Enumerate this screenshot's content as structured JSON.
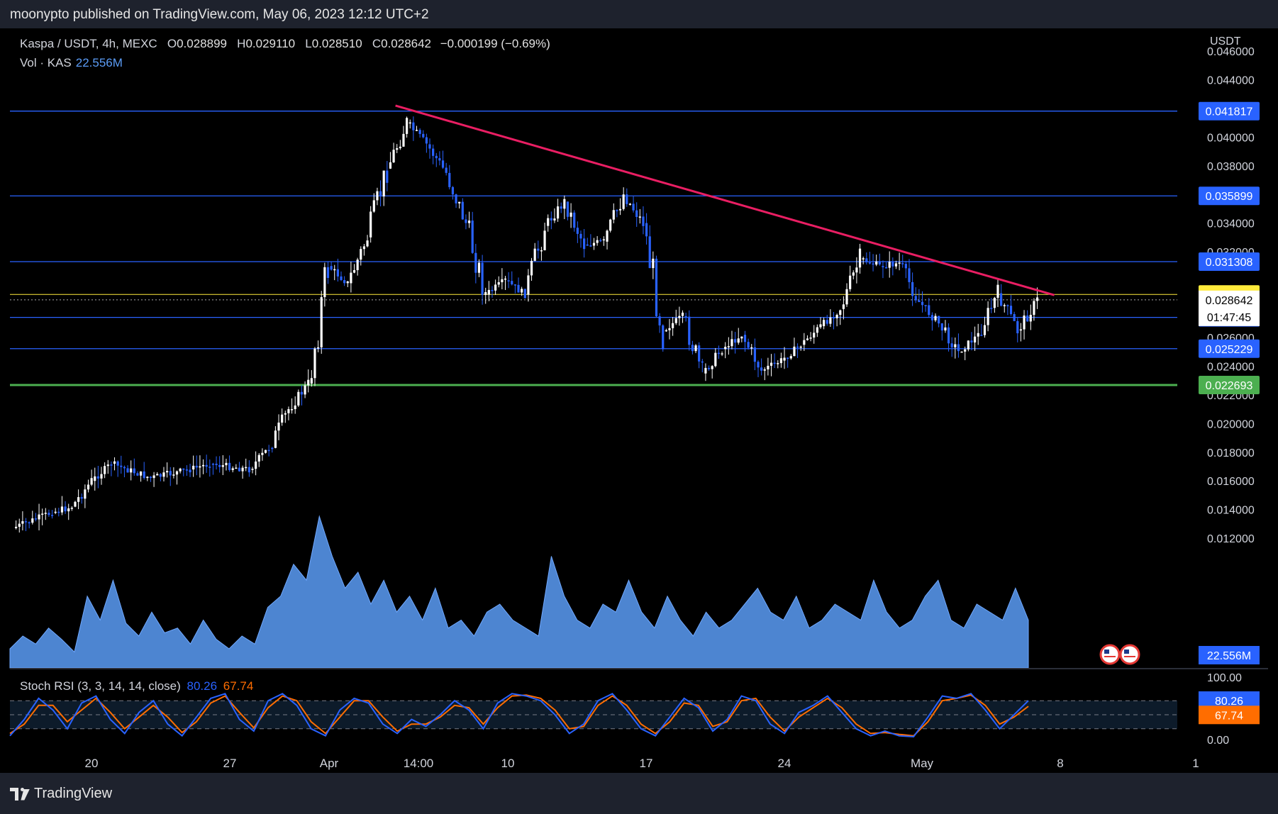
{
  "header": {
    "publish_line": "moonypto published on TradingView.com, May 06, 2023 12:12 UTC+2"
  },
  "legend": {
    "symbol": "Kaspa / USDT, 4h, MEXC",
    "open_label": "O",
    "open": "0.028899",
    "high_label": "H",
    "high": "0.029110",
    "low_label": "L",
    "low": "0.028510",
    "close_label": "C",
    "close": "0.028642",
    "change": "−0.000199 (−0.69%)",
    "vol_label": "Vol · KAS",
    "vol_value": "22.556M"
  },
  "rsi_legend": {
    "label": "Stoch RSI (3, 3, 14, 14, close)",
    "k": "80.26",
    "d": "67.74"
  },
  "footer": {
    "brand": "TradingView"
  },
  "colors": {
    "up": "#ffffff",
    "down": "#2962ff",
    "level": "#2962ff",
    "support": "#4caf50",
    "trendline": "#e91e63",
    "current_price": "#ffeb3b",
    "volume": "#5b9cf6",
    "k_line": "#2962ff",
    "d_line": "#ff6d00"
  },
  "chart_data": {
    "type": "candlestick",
    "timeframe": "4h",
    "price_axis": {
      "currency": "USDT",
      "ticks": [
        "0.046000",
        "0.044000",
        "0.040000",
        "0.038000",
        "0.034000",
        "0.032000",
        "0.026000",
        "0.024000",
        "0.022000",
        "0.020000",
        "0.018000",
        "0.016000",
        "0.014000",
        "0.012000"
      ],
      "range": [
        0.0108,
        0.0465
      ]
    },
    "time_axis": {
      "labels": [
        "20",
        "27",
        "Apr",
        "14:00",
        "10",
        "17",
        "24",
        "May",
        "8",
        "1"
      ]
    },
    "horizontal_levels": [
      {
        "price": 0.041817,
        "label": "0.041817",
        "kind": "resistance"
      },
      {
        "price": 0.035899,
        "label": "0.035899",
        "kind": "resistance"
      },
      {
        "price": 0.031308,
        "label": "0.031308",
        "kind": "resistance"
      },
      {
        "price": 0.027413,
        "label": "0.027413",
        "kind": "support"
      },
      {
        "price": 0.025229,
        "label": "0.025229",
        "kind": "support"
      },
      {
        "price": 0.022693,
        "label": "0.022693",
        "kind": "support"
      },
      {
        "price": 0.029015,
        "label": "0.029015",
        "kind": "current"
      }
    ],
    "current_price": {
      "price": 0.028642,
      "label": "0.028642",
      "countdown": "01:47:45"
    },
    "trendline": {
      "from": {
        "date": "Apr 4",
        "price": 0.0421
      },
      "to": {
        "date": "May 6",
        "price": 0.0289
      }
    },
    "close_path": [
      {
        "date": "Mar 15",
        "price": 0.0127
      },
      {
        "date": "Mar 17",
        "price": 0.0138
      },
      {
        "date": "Mar 18",
        "price": 0.0142
      },
      {
        "date": "Mar 19",
        "price": 0.016
      },
      {
        "date": "Mar 20",
        "price": 0.0172
      },
      {
        "date": "Mar 22",
        "price": 0.0162
      },
      {
        "date": "Mar 24",
        "price": 0.0168
      },
      {
        "date": "Mar 25",
        "price": 0.0172
      },
      {
        "date": "Mar 27",
        "price": 0.0168
      },
      {
        "date": "Mar 28",
        "price": 0.0183
      },
      {
        "date": "Mar 29",
        "price": 0.021
      },
      {
        "date": "Mar 30",
        "price": 0.0228
      },
      {
        "date": "Mar 31",
        "price": 0.031
      },
      {
        "date": "Apr 1",
        "price": 0.0298
      },
      {
        "date": "Apr 2",
        "price": 0.033
      },
      {
        "date": "Apr 3",
        "price": 0.0378
      },
      {
        "date": "Apr 4",
        "price": 0.041
      },
      {
        "date": "Apr 5",
        "price": 0.0395
      },
      {
        "date": "Apr 6",
        "price": 0.0375
      },
      {
        "date": "Apr 7",
        "price": 0.034
      },
      {
        "date": "Apr 8",
        "price": 0.029
      },
      {
        "date": "Apr 9",
        "price": 0.03
      },
      {
        "date": "Apr 10",
        "price": 0.029
      },
      {
        "date": "Apr 11",
        "price": 0.0338
      },
      {
        "date": "Apr 12",
        "price": 0.0355
      },
      {
        "date": "Apr 13",
        "price": 0.0325
      },
      {
        "date": "Apr 14",
        "price": 0.0327
      },
      {
        "date": "Apr 15",
        "price": 0.036
      },
      {
        "date": "Apr 16",
        "price": 0.034
      },
      {
        "date": "Apr 17",
        "price": 0.0265
      },
      {
        "date": "Apr 18",
        "price": 0.0275
      },
      {
        "date": "Apr 19",
        "price": 0.0235
      },
      {
        "date": "Apr 20",
        "price": 0.0252
      },
      {
        "date": "Apr 21",
        "price": 0.0262
      },
      {
        "date": "Apr 22",
        "price": 0.0237
      },
      {
        "date": "Apr 23",
        "price": 0.0244
      },
      {
        "date": "Apr 24",
        "price": 0.0255
      },
      {
        "date": "Apr 25",
        "price": 0.0268
      },
      {
        "date": "Apr 26",
        "price": 0.028
      },
      {
        "date": "Apr 27",
        "price": 0.0315
      },
      {
        "date": "Apr 28",
        "price": 0.031
      },
      {
        "date": "Apr 29",
        "price": 0.0312
      },
      {
        "date": "Apr 30",
        "price": 0.0285
      },
      {
        "date": "May 1",
        "price": 0.027
      },
      {
        "date": "May 2",
        "price": 0.025
      },
      {
        "date": "May 3",
        "price": 0.0262
      },
      {
        "date": "May 4",
        "price": 0.0291
      },
      {
        "date": "May 5",
        "price": 0.0265
      },
      {
        "date": "May 6",
        "price": 0.0286
      }
    ],
    "volume": {
      "last_label": "22.556M",
      "relative_path": [
        0.12,
        0.2,
        0.15,
        0.25,
        0.18,
        0.1,
        0.45,
        0.3,
        0.55,
        0.28,
        0.2,
        0.35,
        0.22,
        0.25,
        0.15,
        0.3,
        0.18,
        0.12,
        0.2,
        0.15,
        0.38,
        0.45,
        0.65,
        0.55,
        0.95,
        0.7,
        0.5,
        0.6,
        0.4,
        0.55,
        0.35,
        0.45,
        0.3,
        0.5,
        0.25,
        0.3,
        0.2,
        0.35,
        0.4,
        0.3,
        0.25,
        0.2,
        0.7,
        0.45,
        0.3,
        0.25,
        0.4,
        0.35,
        0.55,
        0.35,
        0.25,
        0.45,
        0.3,
        0.2,
        0.35,
        0.25,
        0.3,
        0.4,
        0.5,
        0.35,
        0.3,
        0.45,
        0.25,
        0.3,
        0.4,
        0.35,
        0.3,
        0.55,
        0.35,
        0.25,
        0.3,
        0.45,
        0.55,
        0.3,
        0.25,
        0.4,
        0.35,
        0.3,
        0.5,
        0.3
      ]
    },
    "stoch_rsi": {
      "params": "3, 3, 14, 14, close",
      "ticks": [
        "100.00",
        "0.00"
      ],
      "bands": [
        80,
        50,
        20
      ],
      "k_path": [
        5,
        40,
        85,
        60,
        20,
        75,
        90,
        40,
        10,
        55,
        80,
        30,
        5,
        45,
        85,
        95,
        40,
        15,
        80,
        95,
        70,
        20,
        5,
        60,
        85,
        75,
        30,
        10,
        40,
        25,
        50,
        80,
        60,
        20,
        75,
        95,
        90,
        80,
        50,
        10,
        30,
        80,
        95,
        60,
        20,
        5,
        45,
        85,
        65,
        15,
        40,
        90,
        80,
        30,
        10,
        55,
        70,
        90,
        55,
        20,
        5,
        15,
        5,
        3,
        45,
        90,
        85,
        95,
        60,
        20,
        50,
        80
      ],
      "d_path": [
        10,
        30,
        70,
        70,
        35,
        60,
        85,
        55,
        20,
        45,
        70,
        45,
        12,
        35,
        75,
        90,
        55,
        22,
        65,
        90,
        80,
        35,
        10,
        45,
        80,
        80,
        45,
        15,
        30,
        30,
        45,
        70,
        65,
        30,
        65,
        90,
        92,
        85,
        60,
        20,
        25,
        70,
        90,
        70,
        30,
        10,
        35,
        75,
        70,
        25,
        35,
        80,
        85,
        45,
        15,
        45,
        65,
        85,
        65,
        30,
        10,
        12,
        8,
        5,
        35,
        80,
        85,
        92,
        70,
        30,
        45,
        68
      ]
    }
  }
}
